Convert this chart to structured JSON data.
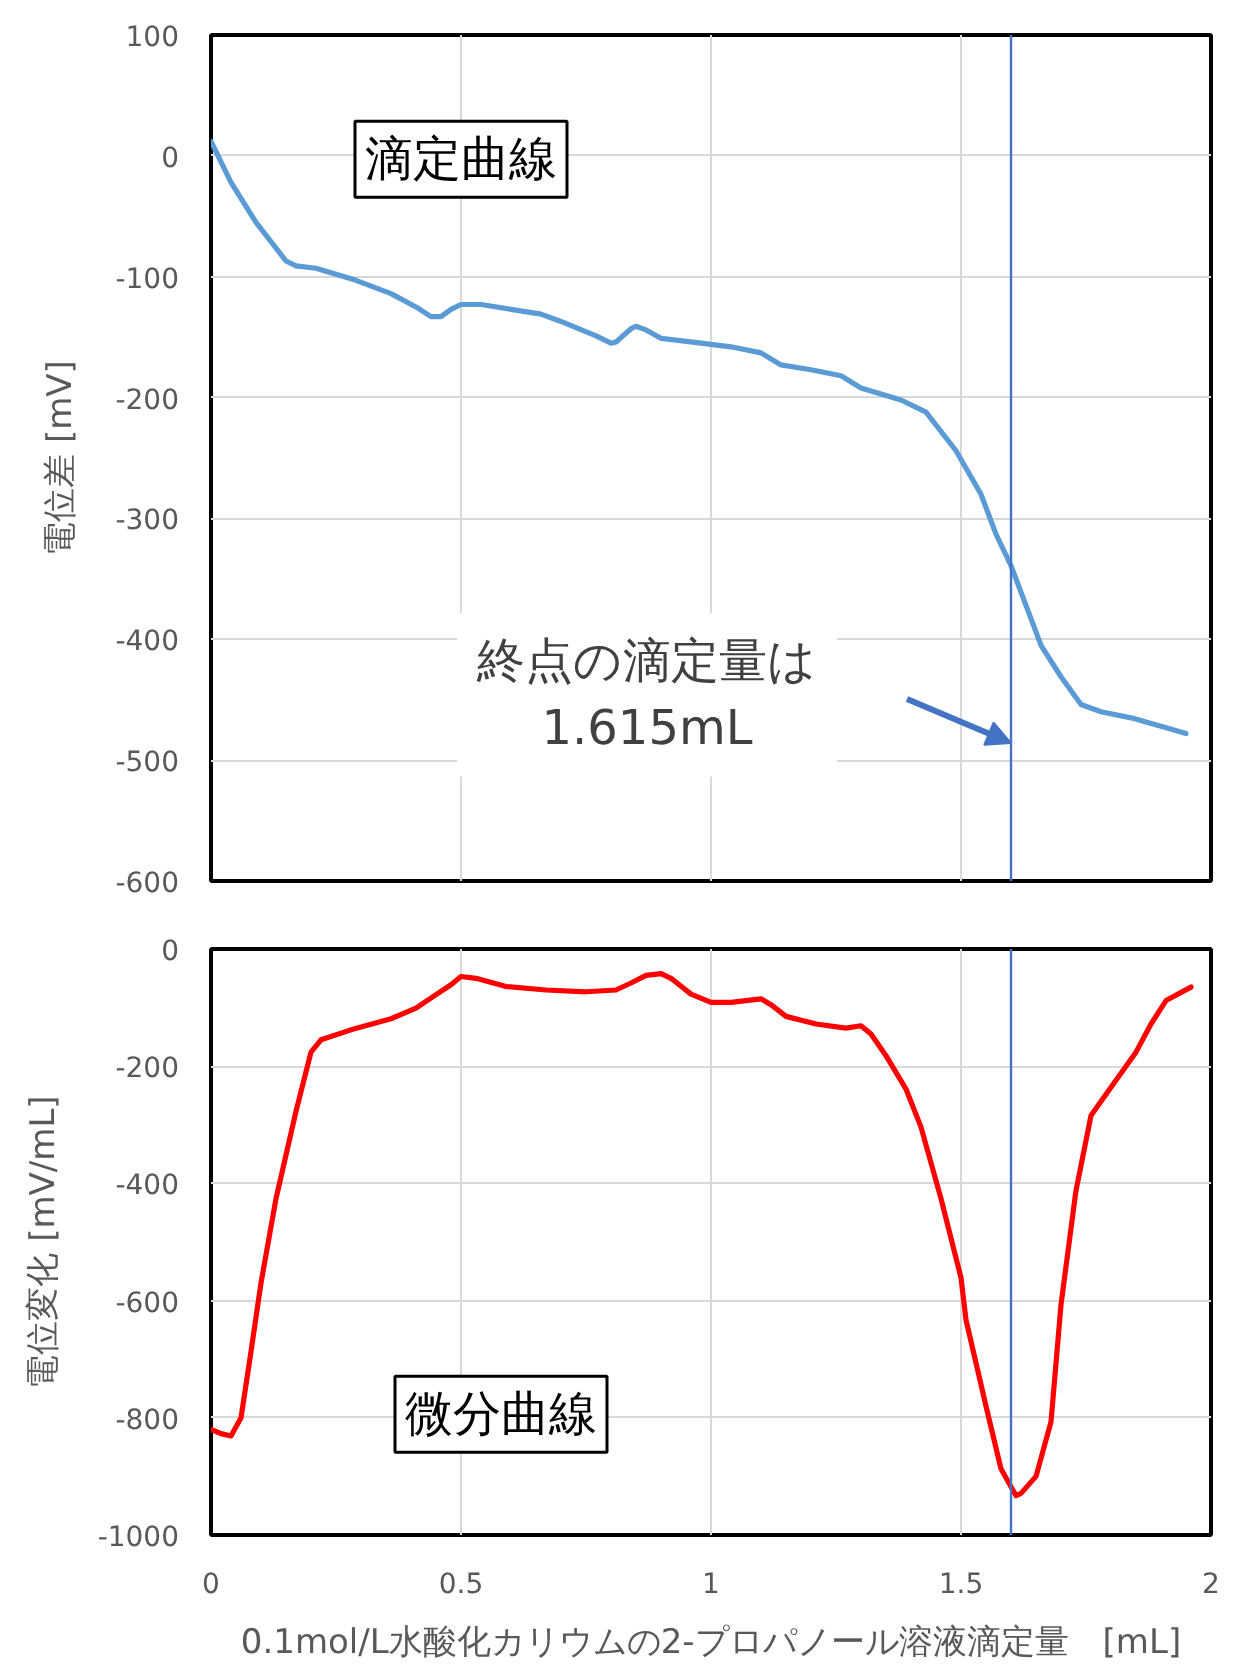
{
  "chart_data": [
    {
      "type": "line",
      "title": "滴定曲線",
      "ylabel": "電位差 [mV]",
      "x": [
        0,
        0.04,
        0.09,
        0.15,
        0.17,
        0.21,
        0.29,
        0.36,
        0.41,
        0.44,
        0.46,
        0.48,
        0.5,
        0.54,
        0.6,
        0.66,
        0.7,
        0.77,
        0.8,
        0.81,
        0.84,
        0.85,
        0.87,
        0.9,
        0.98,
        1.04,
        1.1,
        1.14,
        1.2,
        1.26,
        1.3,
        1.38,
        1.43,
        1.49,
        1.54,
        1.57,
        1.6,
        1.63,
        1.66,
        1.7,
        1.74,
        1.78,
        1.84,
        1.9,
        1.95
      ],
      "series": [
        {
          "color": "#5b9bd5",
          "values": [
            12,
            -22,
            -55,
            -87,
            -91,
            -93,
            -103,
            -114,
            -125,
            -133,
            -133,
            -127,
            -123,
            -123,
            -127,
            -131,
            -137,
            -149,
            -155,
            -154,
            -143,
            -141,
            -144,
            -151,
            -155,
            -158,
            -163,
            -173,
            -177,
            -182,
            -192,
            -202,
            -212,
            -244,
            -280,
            -313,
            -339,
            -372,
            -405,
            -431,
            -454,
            -460,
            -465,
            -472,
            -478
          ]
        }
      ],
      "xlim": [
        0,
        2
      ],
      "xticks": [
        0,
        0.5,
        1,
        1.5,
        2
      ],
      "ylim": [
        -600,
        100
      ],
      "yticks": [
        -600,
        -500,
        -400,
        -300,
        -200,
        -100,
        0,
        100
      ],
      "grid": true,
      "tick_labels": "y",
      "annotations": [
        "終点の滴定量は\n1.615mL"
      ],
      "ref_lines": [
        {
          "axis": "x",
          "value": 1.6,
          "color": "#4472c4"
        }
      ]
    },
    {
      "type": "line",
      "title": "微分曲線",
      "ylabel": "電位変化 [mV/mL]",
      "xlabel": "0.1mol/L水酸化カリウムの2-プロパノール溶液滴定量　[mL]",
      "x": [
        0,
        0.02,
        0.04,
        0.06,
        0.08,
        0.1,
        0.13,
        0.17,
        0.2,
        0.22,
        0.28,
        0.36,
        0.41,
        0.45,
        0.48,
        0.5,
        0.53,
        0.59,
        0.67,
        0.75,
        0.81,
        0.84,
        0.87,
        0.9,
        0.92,
        0.96,
        1.0,
        1.04,
        1.1,
        1.12,
        1.15,
        1.21,
        1.27,
        1.3,
        1.32,
        1.35,
        1.39,
        1.42,
        1.46,
        1.5,
        1.51,
        1.55,
        1.58,
        1.61,
        1.62,
        1.65,
        1.68,
        1.7,
        1.73,
        1.76,
        1.8,
        1.85,
        1.88,
        1.91,
        1.96
      ],
      "series": [
        {
          "color": "#ff0000",
          "values": [
            -820,
            -827,
            -831,
            -800,
            -687,
            -570,
            -426,
            -277,
            -176,
            -155,
            -138,
            -119,
            -101,
            -78,
            -61,
            -47,
            -50,
            -64,
            -70,
            -73,
            -70,
            -58,
            -45,
            -42,
            -50,
            -77,
            -91,
            -91,
            -85,
            -95,
            -115,
            -128,
            -135,
            -131,
            -145,
            -182,
            -239,
            -304,
            -426,
            -561,
            -633,
            -780,
            -887,
            -933,
            -929,
            -900,
            -807,
            -607,
            -412,
            -284,
            -236,
            -176,
            -128,
            -88,
            -65
          ]
        }
      ],
      "xlim": [
        0,
        2
      ],
      "xticks": [
        0,
        0.5,
        1,
        1.5,
        2
      ],
      "ylim": [
        -1000,
        0
      ],
      "yticks": [
        -1000,
        -800,
        -600,
        -400,
        -200,
        0
      ],
      "grid": true,
      "ref_lines": [
        {
          "axis": "x",
          "value": 1.6,
          "color": "#4472c4"
        }
      ]
    }
  ]
}
